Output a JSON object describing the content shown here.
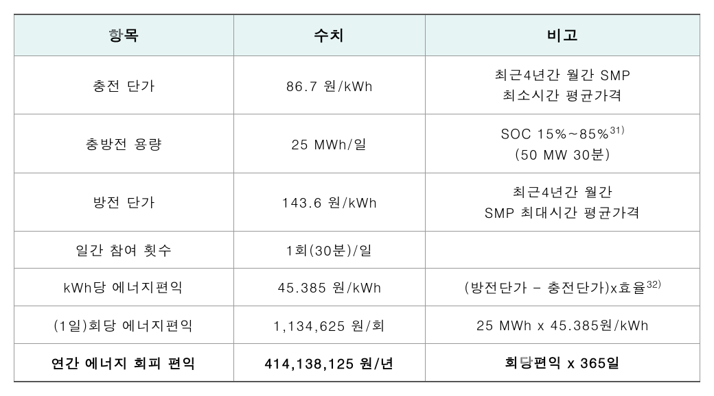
{
  "table": {
    "columns": [
      "항목",
      "수치",
      "비고"
    ],
    "header_bg": "#e6f4f4",
    "border_color": "#999999",
    "outer_border_color": "#555555",
    "rows": [
      {
        "item": "충전 단가",
        "value": "86.7 원/kWh",
        "note_lines": [
          "최근4년간 월간 SMP",
          "최소시간 평균가격"
        ],
        "bold": false
      },
      {
        "item": "충방전 용량",
        "value": "25 MWh/일",
        "note_lines": [
          "SOC 15%~85%",
          "(50 MW 30분)"
        ],
        "note_sup_after_line": 0,
        "note_sup": "31)",
        "bold": false
      },
      {
        "item": "방전 단가",
        "value": "143.6 원/kWh",
        "note_lines": [
          "최근4년간 월간",
          "SMP 최대시간 평균가격"
        ],
        "bold": false
      },
      {
        "item": "일간 참여 횟수",
        "value": "1회(30분)/일",
        "note_lines": [
          ""
        ],
        "bold": false
      },
      {
        "item": "kWh당 에너지편익",
        "value": "45.385 원/kWh",
        "note_lines": [
          "(방전단가 - 충전단가)x효율"
        ],
        "note_sup_after_line": 0,
        "note_sup": "32)",
        "bold": false
      },
      {
        "item": "(1일)회당 에너지편익",
        "value": "1,134,625 원/회",
        "note_lines": [
          "25 MWh x 45.385원/kWh"
        ],
        "bold": false
      },
      {
        "item": "연간 에너지 회피 편익",
        "value": "414,138,125 원/년",
        "note_lines": [
          "회당편익 x 365일"
        ],
        "bold": true
      }
    ]
  }
}
